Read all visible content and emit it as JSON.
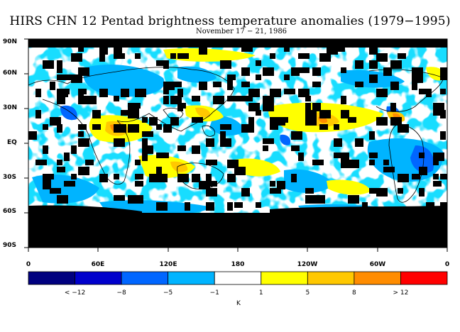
{
  "title": "HIRS CHN 12 Pentad brightness temperature anomalies (1979−1995)",
  "subtitle": "November 17 − 21, 1986",
  "y_ticks": [
    "90N",
    "60N",
    "30N",
    "EQ",
    "30S",
    "60S",
    "90S"
  ],
  "x_ticks": [
    "0",
    "60E",
    "120E",
    "180",
    "120W",
    "60W",
    "0"
  ],
  "colorbar": {
    "colors": [
      "#00007f",
      "#0000cc",
      "#0066ff",
      "#00b4ff",
      "#ffffff",
      "#ffff00",
      "#ffc800",
      "#ff8c00",
      "#ff0000"
    ],
    "labels": [
      "< −12",
      "−8",
      "−5",
      "−1",
      "1",
      "5",
      "8",
      "> 12"
    ],
    "unit": "K"
  },
  "map": {
    "colors": {
      "missing": "#000000",
      "neutral": "#ffffff",
      "light_blue": "#00b4ff",
      "blue": "#0066ff",
      "yellow": "#ffff00",
      "orange": "#ffc800",
      "dark_orange": "#ff8c00"
    }
  }
}
